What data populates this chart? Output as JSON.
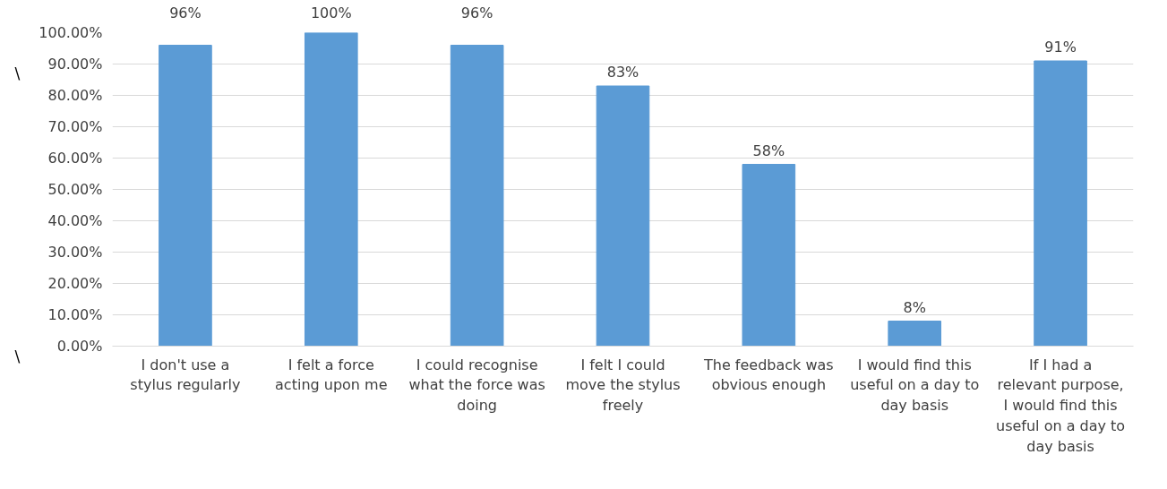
{
  "chart_data": {
    "type": "bar",
    "categories": [
      "I don't use a stylus regularly",
      "I felt a force acting upon me",
      "I could recognise what the force was doing",
      "I felt I could move the stylus freely",
      "The feedback was obvious enough",
      "I would find this useful on a day to day basis",
      "If I had a relevant purpose, I would find this useful on a day to day basis"
    ],
    "values": [
      96,
      100,
      96,
      83,
      58,
      8,
      91
    ],
    "color": "#5b9bd5",
    "value_labels": [
      "96%",
      "100%",
      "96%",
      "83%",
      "58%",
      "8%",
      "91%"
    ],
    "ylim": [
      0,
      100
    ],
    "yticks": [
      {
        "value": 0,
        "label": "0.00%"
      },
      {
        "value": 10,
        "label": "10.00%"
      },
      {
        "value": 20,
        "label": "20.00%"
      },
      {
        "value": 30,
        "label": "30.00%"
      },
      {
        "value": 40,
        "label": "40.00%"
      },
      {
        "value": 50,
        "label": "50.00%"
      },
      {
        "value": 60,
        "label": "60.00%"
      },
      {
        "value": 70,
        "label": "70.00%"
      },
      {
        "value": 80,
        "label": "80.00%"
      },
      {
        "value": 90,
        "label": "90.00%"
      },
      {
        "value": 100,
        "label": "100.00%"
      }
    ],
    "grid": "y",
    "annotations": [
      "\\",
      "\\"
    ]
  }
}
